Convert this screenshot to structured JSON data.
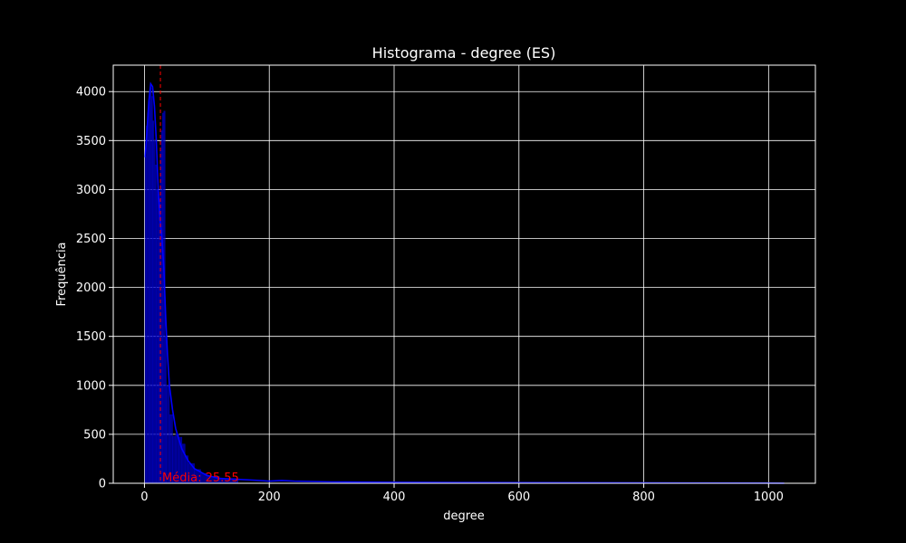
{
  "chart_data": {
    "type": "bar",
    "title": "Histograma - degree (ES)",
    "xlabel": "degree",
    "ylabel": "Frequência",
    "xlim": [
      -50,
      1075
    ],
    "ylim": [
      0,
      4270
    ],
    "xticks": [
      0,
      200,
      400,
      600,
      800,
      1000
    ],
    "yticks": [
      0,
      500,
      1000,
      1500,
      2000,
      2500,
      3000,
      3500,
      4000
    ],
    "grid": true,
    "bins": [
      {
        "x0": 1,
        "x1": 3,
        "value": 3340
      },
      {
        "x0": 3,
        "x1": 5,
        "value": 3650
      },
      {
        "x0": 5,
        "x1": 7,
        "value": 3780
      },
      {
        "x0": 7,
        "x1": 9,
        "value": 3900
      },
      {
        "x0": 9,
        "x1": 11,
        "value": 4040
      },
      {
        "x0": 11,
        "x1": 13,
        "value": 3950
      },
      {
        "x0": 13,
        "x1": 15,
        "value": 3700
      },
      {
        "x0": 15,
        "x1": 17,
        "value": 3500
      },
      {
        "x0": 17,
        "x1": 19,
        "value": 3250
      },
      {
        "x0": 19,
        "x1": 21,
        "value": 3000
      },
      {
        "x0": 21,
        "x1": 23,
        "value": 2950
      },
      {
        "x0": 23,
        "x1": 25,
        "value": 2900
      },
      {
        "x0": 25,
        "x1": 27,
        "value": 3400
      },
      {
        "x0": 27,
        "x1": 29,
        "value": 3600
      },
      {
        "x0": 29,
        "x1": 31,
        "value": 3780
      },
      {
        "x0": 31,
        "x1": 33,
        "value": 3800
      },
      {
        "x0": 33,
        "x1": 35,
        "value": 1500
      },
      {
        "x0": 35,
        "x1": 40,
        "value": 1000
      },
      {
        "x0": 40,
        "x1": 45,
        "value": 700
      },
      {
        "x0": 45,
        "x1": 50,
        "value": 480
      },
      {
        "x0": 50,
        "x1": 55,
        "value": 500
      },
      {
        "x0": 55,
        "x1": 60,
        "value": 470
      },
      {
        "x0": 60,
        "x1": 65,
        "value": 400
      },
      {
        "x0": 65,
        "x1": 70,
        "value": 280
      },
      {
        "x0": 70,
        "x1": 80,
        "value": 200
      },
      {
        "x0": 80,
        "x1": 90,
        "value": 140
      },
      {
        "x0": 90,
        "x1": 100,
        "value": 100
      },
      {
        "x0": 100,
        "x1": 120,
        "value": 70
      },
      {
        "x0": 120,
        "x1": 150,
        "value": 45
      }
    ],
    "kde": {
      "x": [
        1,
        4,
        7,
        10,
        13,
        16,
        19,
        22,
        25,
        28,
        31,
        34,
        37,
        40,
        45,
        50,
        55,
        60,
        70,
        80,
        100,
        120,
        150,
        180,
        200,
        220,
        240,
        300,
        400,
        500,
        600,
        700,
        800,
        900,
        1000,
        1025
      ],
      "y": [
        3330,
        3600,
        3900,
        4080,
        4050,
        3850,
        3500,
        3000,
        2700,
        2500,
        2200,
        1700,
        1300,
        1000,
        750,
        560,
        450,
        350,
        230,
        150,
        80,
        50,
        40,
        30,
        22,
        28,
        22,
        14,
        10,
        8,
        6,
        5,
        4,
        3,
        2,
        1
      ]
    },
    "mean_line": {
      "value": 25.55,
      "label": "Média: 25.55"
    },
    "colors": {
      "background": "#000000",
      "bars": "#0000ff",
      "kde": "#0000ff",
      "mean_line": "#ff0000",
      "grid": "#ffffff",
      "text": "#ffffff"
    }
  }
}
